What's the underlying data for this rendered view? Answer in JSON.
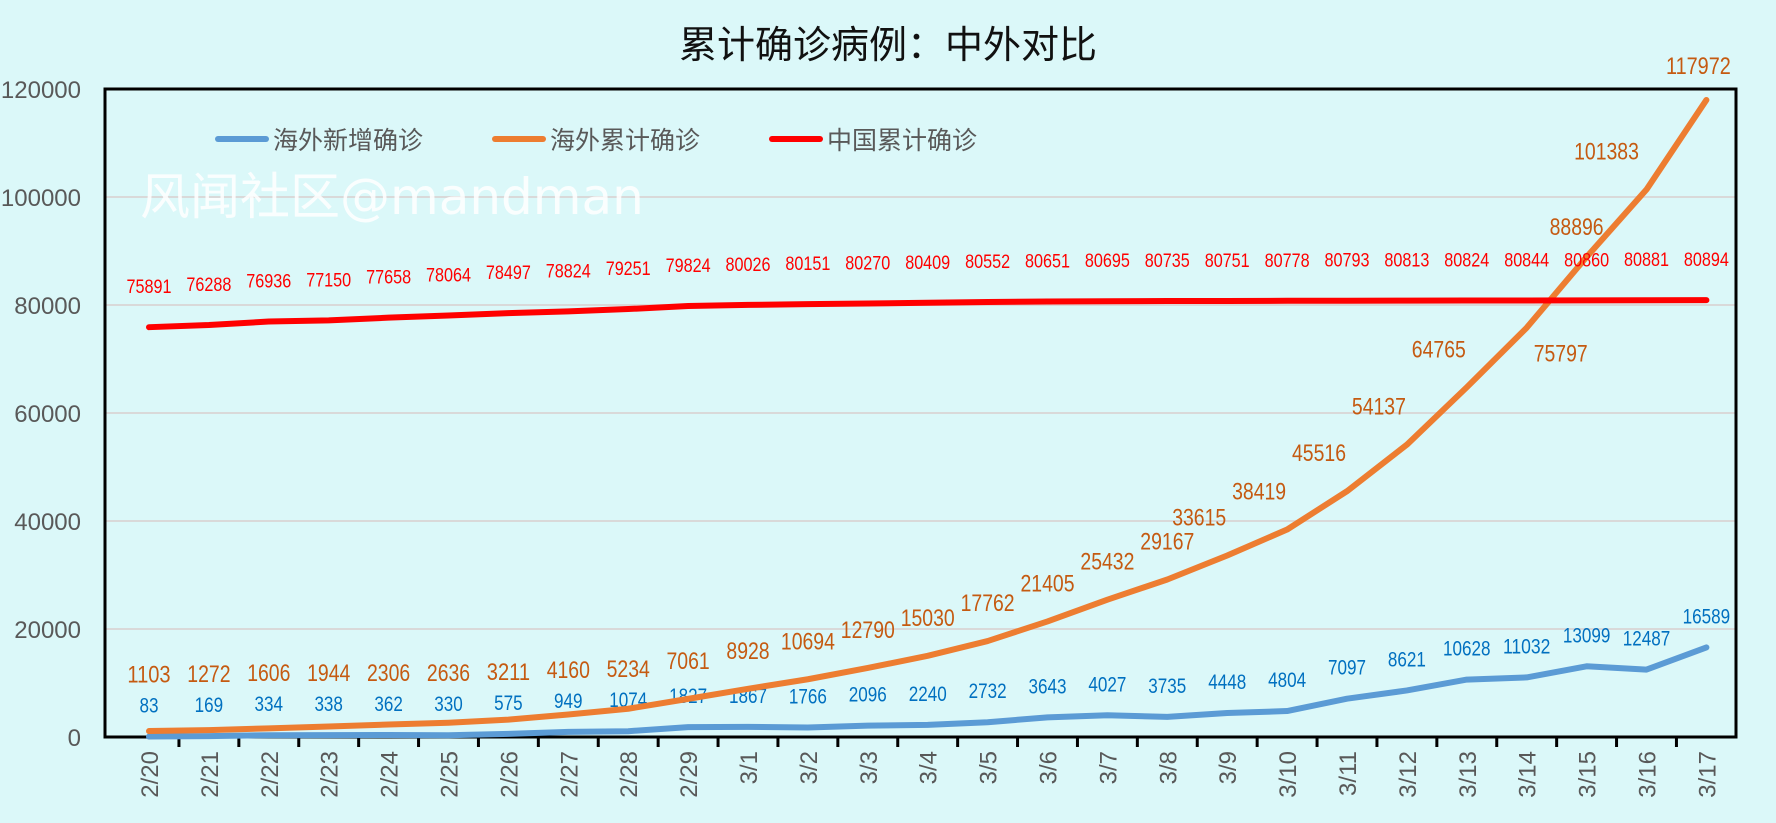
{
  "chart_data": {
    "type": "line",
    "title": "累计确诊病例：中外对比",
    "xlabel": "",
    "ylabel": "",
    "ylim": [
      0,
      120000
    ],
    "yticks": [
      0,
      20000,
      40000,
      60000,
      80000,
      100000,
      120000
    ],
    "grid": true,
    "legend_position": "top-left",
    "categories": [
      "2/20",
      "2/21",
      "2/22",
      "2/23",
      "2/24",
      "2/25",
      "2/26",
      "2/27",
      "2/28",
      "2/29",
      "3/1",
      "3/2",
      "3/3",
      "3/4",
      "3/5",
      "3/6",
      "3/7",
      "3/8",
      "3/9",
      "3/10",
      "3/11",
      "3/12",
      "3/13",
      "3/14",
      "3/15",
      "3/16",
      "3/17"
    ],
    "series": [
      {
        "name": "海外新增确诊",
        "color": "#5b9bd5",
        "label_color": "#0070c0",
        "values": [
          83,
          169,
          334,
          338,
          362,
          330,
          575,
          949,
          1074,
          1827,
          1867,
          1766,
          2096,
          2240,
          2732,
          3643,
          4027,
          3735,
          4448,
          4804,
          7097,
          8621,
          10628,
          11032,
          13099,
          12487,
          16589
        ]
      },
      {
        "name": "海外累计确诊",
        "color": "#ed7d31",
        "label_color": "#c55a11",
        "values": [
          1103,
          1272,
          1606,
          1944,
          2306,
          2636,
          3211,
          4160,
          5234,
          7061,
          8928,
          10694,
          12790,
          15030,
          17762,
          21405,
          25432,
          29167,
          33615,
          38419,
          45516,
          54137,
          64765,
          75797,
          88896,
          101383,
          117972
        ]
      },
      {
        "name": "中国累计确诊",
        "color": "#ff0000",
        "label_color": "#ff0000",
        "values": [
          75891,
          76288,
          76936,
          77150,
          77658,
          78064,
          78497,
          78824,
          79251,
          79824,
          80026,
          80151,
          80270,
          80409,
          80552,
          80651,
          80695,
          80735,
          80751,
          80778,
          80793,
          80813,
          80824,
          80844,
          80860,
          80881,
          80894
        ]
      }
    ]
  },
  "watermark": "风闻社区@mandman"
}
